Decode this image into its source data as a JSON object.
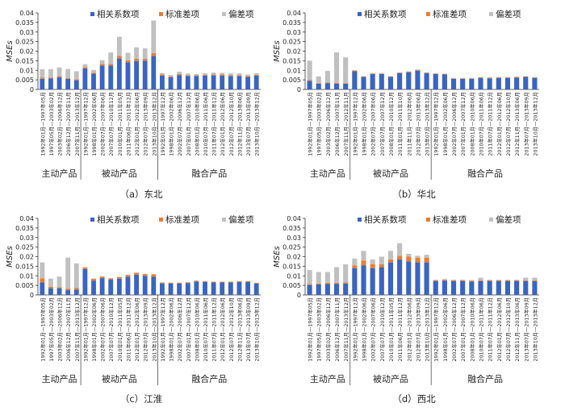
{
  "legend": {
    "series": [
      "相关系数项",
      "标准差项",
      "偏差项"
    ]
  },
  "colors": {
    "corr": "#3a64c0",
    "std": "#ea7d32",
    "bias": "#c0c0c0",
    "axis": "#333333"
  },
  "group_labels": [
    "主动产品",
    "被动产品",
    "融合产品"
  ],
  "chart_data": [
    {
      "type": "bar",
      "caption": "（a）东北",
      "ylabel": "MSEs",
      "ylim": [
        0,
        0.04
      ],
      "yticks": [
        "0",
        "0.005",
        "0.01",
        "0.015",
        "0.02",
        "0.025",
        "0.03",
        "0.035",
        "0.04"
      ],
      "categories": [
        "1992年01月—1997年05月",
        "1997年05月—2003年02月",
        "2003年02月—2006年12月",
        "2006年12月—2007年11月",
        "2007年11月—2013年12月",
        "1992年01月—1997年12月",
        "1998年01月—2002年06月",
        "2002年07月—2007年06月",
        "2007年07月—2010年12月",
        "2010年01月—2011年05月",
        "2011年06月—2011年12月",
        "2012年01月—2012年06月",
        "2012年07月—2013年09月",
        "2013年10月—2013年12月",
        "1992年01月—1997年12月",
        "1998年01月—2002年06月",
        "2002年07月—2006年12月",
        "2007年01月—2007年12月",
        "2008年01月—2010年06月",
        "2010年07月—2011年06月",
        "2011年07月—2011年12月",
        "2012年01月—2012年06月",
        "2012年07月—2012年10月",
        "2012年11月—2013年06月",
        "2013年07月—2013年09月",
        "2013年10月—2013年12月"
      ],
      "groups": [
        5,
        9,
        12
      ],
      "series": [
        {
          "name": "相关系数项",
          "values": [
            0.0055,
            0.0057,
            0.0064,
            0.0055,
            0.0048,
            0.011,
            0.0082,
            0.0125,
            0.0125,
            0.016,
            0.0142,
            0.0148,
            0.015,
            0.0175,
            0.0072,
            0.0063,
            0.0075,
            0.007,
            0.007,
            0.0072,
            0.0073,
            0.0072,
            0.007,
            0.007,
            0.0065,
            0.0072
          ]
        },
        {
          "name": "标准差项",
          "values": [
            0.0006,
            0.0004,
            0.0006,
            0.0004,
            0.0005,
            0.0007,
            0.0005,
            0.0008,
            0.0008,
            0.0015,
            0.001,
            0.0012,
            0.001,
            0.0015,
            0.0006,
            0.0005,
            0.0006,
            0.0005,
            0.0004,
            0.0005,
            0.0005,
            0.0006,
            0.0005,
            0.0005,
            0.0005,
            0.0005
          ]
        },
        {
          "name": "偏差项",
          "values": [
            0.0045,
            0.0045,
            0.0045,
            0.0048,
            0.0042,
            0.0015,
            0.0015,
            0.002,
            0.006,
            0.01,
            0.004,
            0.006,
            0.0055,
            0.017,
            0.0008,
            0.0008,
            0.0012,
            0.0008,
            0.0006,
            0.0008,
            0.001,
            0.0009,
            0.0009,
            0.0009,
            0.0008,
            0.0008
          ]
        }
      ]
    },
    {
      "type": "bar",
      "caption": "（b）华北",
      "ylabel": "MSEs",
      "ylim": [
        0,
        0.04
      ],
      "yticks": [
        "0",
        "0.005",
        "0.01",
        "0.015",
        "0.02",
        "0.025",
        "0.03",
        "0.035",
        "0.04"
      ],
      "categories": [
        "1992年01月—1997年05月",
        "1997年05月—2003年02月",
        "2003年02月—2006年12月",
        "2006年12月—2007年11月",
        "2007年11月—2012年11月",
        "1992年01月—1997年12月",
        "1998年01月—2002年06月",
        "2002年07月—2007年06月",
        "2007年07月—2007年12月",
        "2008年01月—2010年12月",
        "2011年01月—2011年10月",
        "2011年11月—2012年06月",
        "2012年07月—2013年06月",
        "2013年07月—2013年12月",
        "1992年01月—1997年12月",
        "1998年01月—2002年06月",
        "2002年07月—2006年12月",
        "2007年01月—2007年12月",
        "2008年01月—2010年06月",
        "2010年07月—2011年06月",
        "2011年07月—2011年12月",
        "2012年01月—2012年06月",
        "2012年07月—2012年10月",
        "2012年11月—2013年06月",
        "2013年07月—2013年09月",
        "2013年10月—2013年12月"
      ],
      "groups": [
        5,
        9,
        12
      ],
      "series": [
        {
          "name": "相关系数项",
          "values": [
            0.0045,
            0.003,
            0.0033,
            0.003,
            0.003,
            0.0095,
            0.0065,
            0.008,
            0.008,
            0.0065,
            0.0085,
            0.009,
            0.0098,
            0.0085,
            0.008,
            0.0078,
            0.0055,
            0.0055,
            0.0055,
            0.006,
            0.0058,
            0.006,
            0.006,
            0.0062,
            0.0065,
            0.006
          ]
        },
        {
          "name": "标准差项",
          "values": [
            0.0005,
            0.0003,
            0.0004,
            0.0004,
            0.0003,
            0.0004,
            0.0003,
            0.0003,
            0.0003,
            0.0003,
            0.0003,
            0.0003,
            0.0004,
            0.0003,
            0.0003,
            0.0003,
            0.0003,
            0.0003,
            0.0003,
            0.0003,
            0.0003,
            0.0003,
            0.0003,
            0.0003,
            0.0003,
            0.0003
          ]
        },
        {
          "name": "偏差项",
          "values": [
            0.01,
            0.0035,
            0.006,
            0.016,
            0.0135,
            0.0001,
            0.0002,
            0.0002,
            0.0002,
            0.0002,
            0.0002,
            0.0002,
            0.0003,
            0.0002,
            0.0002,
            0.0002,
            0.0002,
            0.0002,
            0.0002,
            0.0002,
            0.0002,
            0.0002,
            0.0002,
            0.0002,
            0.0002,
            0.0002
          ]
        }
      ]
    },
    {
      "type": "bar",
      "caption": "（c）江淮",
      "ylabel": "MSEs",
      "ylim": [
        0,
        0.04
      ],
      "yticks": [
        "0",
        "0.005",
        "0.01",
        "0.015",
        "0.02",
        "0.025",
        "0.03",
        "0.035",
        "0.04"
      ],
      "categories": [
        "1992年01月—1997年05月",
        "1997年05月—2003年02月",
        "2003年02月—2006年12月",
        "2006年12月—2007年11月",
        "2007年11月—2013年12月",
        "1992年01月—1997年12月",
        "1998年01月—2002年06月",
        "2002年07月—2007年06月",
        "2007年07月—2010年12月",
        "2010年01月—2011年05月",
        "2011年06月—2011年12月",
        "2012年01月—2012年06月",
        "2012年07月—2013年09月",
        "2013年10月—2013年12月",
        "1992年01月—1997年12月",
        "1998年01月—2002年06月",
        "2002年07月—2006年12月",
        "2007年01月—2007年12月",
        "2008年01月—2010年06月",
        "2010年07月—2011年06月",
        "2011年07月—2011年12月",
        "2012年01月—2012年06月",
        "2012年07月—2012年10月",
        "2012年11月—2013年06月",
        "2013年07月—2013年09月",
        "2013年10月—2013年12月"
      ],
      "groups": [
        5,
        9,
        12
      ],
      "series": [
        {
          "name": "相关系数项",
          "values": [
            0.0065,
            0.0035,
            0.0035,
            0.0025,
            0.0028,
            0.0135,
            0.0075,
            0.0088,
            0.008,
            0.0085,
            0.0095,
            0.0105,
            0.01,
            0.0095,
            0.006,
            0.006,
            0.006,
            0.0062,
            0.007,
            0.0068,
            0.0065,
            0.0065,
            0.0065,
            0.0068,
            0.0068,
            0.006
          ]
        },
        {
          "name": "标准差项",
          "values": [
            0.0022,
            0.0008,
            0.0006,
            0.0008,
            0.0009,
            0.0008,
            0.0009,
            0.0008,
            0.0006,
            0.0008,
            0.0009,
            0.001,
            0.0009,
            0.0012,
            0.0005,
            0.0004,
            0.0004,
            0.0004,
            0.0004,
            0.0004,
            0.0004,
            0.0004,
            0.0004,
            0.0004,
            0.0004,
            0.0003
          ]
        },
        {
          "name": "偏差项",
          "values": [
            0.0083,
            0.0042,
            0.0055,
            0.0162,
            0.0128,
            0.0002,
            0.0002,
            0.0002,
            0.0002,
            0.0002,
            0.0002,
            0.0003,
            0.0002,
            0.0003,
            0.0001,
            0.0001,
            0.0001,
            0.0001,
            0.0001,
            0.0001,
            0.0001,
            0.0001,
            0.0001,
            0.0001,
            0.0001,
            0.0001
          ]
        }
      ]
    },
    {
      "type": "bar",
      "caption": "（d）西北",
      "ylabel": "MSEs",
      "ylim": [
        0,
        0.04
      ],
      "yticks": [
        "0",
        "0.005",
        "0.01",
        "0.015",
        "0.02",
        "0.025",
        "0.03",
        "0.035",
        "0.04"
      ],
      "categories": [
        "1992年01月—1997年05月",
        "1997年05月—2003年02月",
        "2003年02月—2006年12月",
        "2006年12月—2007年11月",
        "2007年11月—2013年12月",
        "1992年01月—1997年12月",
        "1998年01月—2002年06月",
        "2002年07月—2007年06月",
        "2007年07月—2010年12月",
        "2010年01月—2011年05月",
        "2011年06月—2011年12月",
        "2012年01月—2012年06月",
        "2012年07月—2013年09月",
        "2013年10月—2013年12月",
        "1992年01月—1997年12月",
        "1998年01月—2002年06月",
        "2002年07月—2006年12月",
        "2007年01月—2007年12月",
        "2008年01月—2010年06月",
        "2010年07月—2011年06月",
        "2011年07月—2011年12月",
        "2012年01月—2012年06月",
        "2012年07月—2012年10月",
        "2012年11月—2013年06月",
        "2013年07月—2013年09月",
        "2013年10月—2013年12月"
      ],
      "groups": [
        5,
        9,
        12
      ],
      "series": [
        {
          "name": "相关系数项",
          "values": [
            0.0052,
            0.0055,
            0.0057,
            0.0058,
            0.006,
            0.014,
            0.0155,
            0.014,
            0.0145,
            0.017,
            0.0185,
            0.0175,
            0.017,
            0.017,
            0.0072,
            0.0075,
            0.0072,
            0.0072,
            0.007,
            0.0072,
            0.0072,
            0.0072,
            0.0072,
            0.0072,
            0.0072,
            0.0072
          ]
        },
        {
          "name": "标准差项",
          "values": [
            0.0005,
            0.0005,
            0.0006,
            0.0005,
            0.0006,
            0.0015,
            0.0025,
            0.002,
            0.0015,
            0.0015,
            0.002,
            0.0025,
            0.0025,
            0.0025,
            0.0004,
            0.0004,
            0.0004,
            0.0004,
            0.0004,
            0.0005,
            0.0004,
            0.0004,
            0.0004,
            0.0004,
            0.0005,
            0.0005
          ]
        },
        {
          "name": "偏差项",
          "values": [
            0.0073,
            0.006,
            0.0057,
            0.0082,
            0.0094,
            0.0035,
            0.005,
            0.0025,
            0.004,
            0.0045,
            0.0065,
            0.0015,
            0.001,
            0.0015,
            0.0004,
            0.0004,
            0.0004,
            0.0004,
            0.0004,
            0.0013,
            0.0004,
            0.0004,
            0.0004,
            0.0004,
            0.0013,
            0.0013
          ]
        }
      ]
    }
  ]
}
